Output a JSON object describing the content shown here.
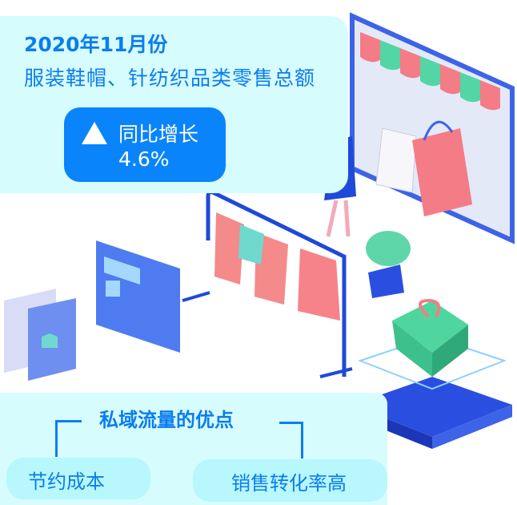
{
  "header": {
    "date_title": "2020年11月份",
    "subtitle": "服装鞋帽、针纺织品类零售总额"
  },
  "growth_badge": {
    "icon": "triangle-up-icon",
    "label": "同比增长",
    "value": "4.6%"
  },
  "advantages": {
    "title": "私域流量的优点",
    "items": [
      "节约成本",
      "销售转化率高"
    ]
  },
  "colors": {
    "accent": "#0a84fb",
    "text_blue": "#0a7df0",
    "card_bg": "#d7fcfd",
    "pill_bg": "#b8f7fb"
  }
}
